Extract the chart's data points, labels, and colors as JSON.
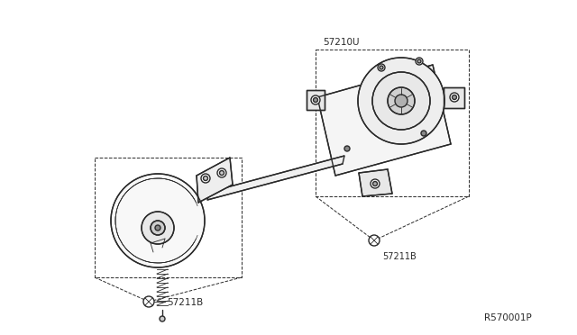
{
  "bg_color": "#ffffff",
  "line_color": "#2a2a2a",
  "label_color": "#2a2a2a",
  "labels": {
    "top_part": "57210U",
    "bolt_right": "57211B",
    "bolt_left": "57211B",
    "ref": "R570001P"
  },
  "figsize": [
    6.4,
    3.72
  ],
  "dpi": 100,
  "lw_main": 1.0,
  "lw_thin": 0.6,
  "lw_dashed": 0.7
}
